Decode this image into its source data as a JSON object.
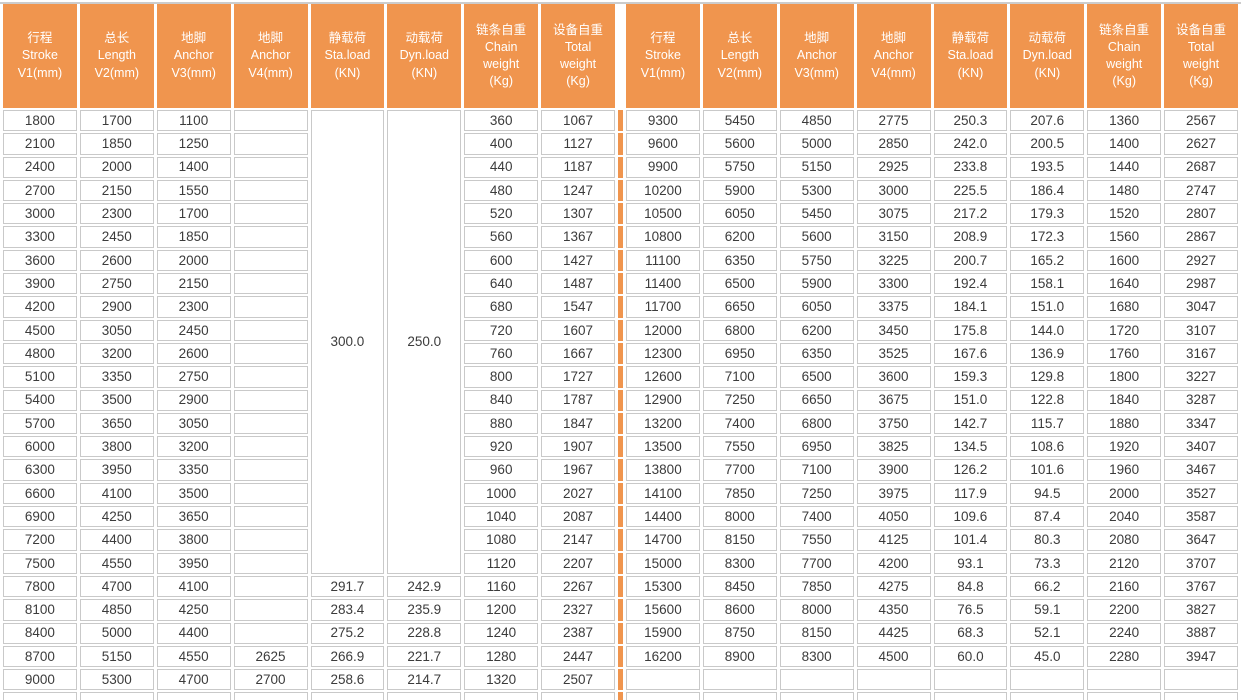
{
  "colors": {
    "header_bg": "#F0954E",
    "divider": "#F0954E",
    "cell_border": "#C9C9C9",
    "cell_text": "#3B3B3B",
    "header_text": "#FFFFFF"
  },
  "table": {
    "columns": [
      {
        "id": "stroke-v1",
        "lines": [
          "行程",
          "Stroke",
          "V1(mm)"
        ]
      },
      {
        "id": "length-v2",
        "lines": [
          "总长",
          "Length",
          "V2(mm)"
        ]
      },
      {
        "id": "anchor-v3",
        "lines": [
          "地脚",
          "Anchor",
          "V3(mm)"
        ]
      },
      {
        "id": "anchor-v4",
        "lines": [
          "地脚",
          "Anchor",
          "V4(mm)"
        ]
      },
      {
        "id": "sta-load",
        "lines": [
          "静载荷",
          "Sta.load",
          "(KN)"
        ]
      },
      {
        "id": "dyn-load",
        "lines": [
          "动载荷",
          "Dyn.load",
          "(KN)"
        ]
      },
      {
        "id": "chain-weight",
        "lines": [
          "链条自重",
          "Chain",
          "weight",
          "(Kg)"
        ]
      },
      {
        "id": "total-weight",
        "lines": [
          "设备自重",
          "Total",
          "weight",
          "(Kg)"
        ]
      }
    ],
    "left": {
      "merged_rows": 20,
      "sta_load": "300.0",
      "dyn_load": "250.0",
      "rows": [
        [
          "1800",
          "1700",
          "1100",
          "",
          "",
          "",
          "360",
          "1067"
        ],
        [
          "2100",
          "1850",
          "1250",
          "",
          "",
          "",
          "400",
          "1127"
        ],
        [
          "2400",
          "2000",
          "1400",
          "",
          "",
          "",
          "440",
          "1187"
        ],
        [
          "2700",
          "2150",
          "1550",
          "",
          "",
          "",
          "480",
          "1247"
        ],
        [
          "3000",
          "2300",
          "1700",
          "",
          "",
          "",
          "520",
          "1307"
        ],
        [
          "3300",
          "2450",
          "1850",
          "",
          "",
          "",
          "560",
          "1367"
        ],
        [
          "3600",
          "2600",
          "2000",
          "",
          "",
          "",
          "600",
          "1427"
        ],
        [
          "3900",
          "2750",
          "2150",
          "",
          "",
          "",
          "640",
          "1487"
        ],
        [
          "4200",
          "2900",
          "2300",
          "",
          "",
          "",
          "680",
          "1547"
        ],
        [
          "4500",
          "3050",
          "2450",
          "",
          "",
          "",
          "720",
          "1607"
        ],
        [
          "4800",
          "3200",
          "2600",
          "",
          "",
          "",
          "760",
          "1667"
        ],
        [
          "5100",
          "3350",
          "2750",
          "",
          "",
          "",
          "800",
          "1727"
        ],
        [
          "5400",
          "3500",
          "2900",
          "",
          "",
          "",
          "840",
          "1787"
        ],
        [
          "5700",
          "3650",
          "3050",
          "",
          "",
          "",
          "880",
          "1847"
        ],
        [
          "6000",
          "3800",
          "3200",
          "",
          "",
          "",
          "920",
          "1907"
        ],
        [
          "6300",
          "3950",
          "3350",
          "",
          "",
          "",
          "960",
          "1967"
        ],
        [
          "6600",
          "4100",
          "3500",
          "",
          "",
          "",
          "1000",
          "2027"
        ],
        [
          "6900",
          "4250",
          "3650",
          "",
          "",
          "",
          "1040",
          "2087"
        ],
        [
          "7200",
          "4400",
          "3800",
          "",
          "",
          "",
          "1080",
          "2147"
        ],
        [
          "7500",
          "4550",
          "3950",
          "",
          "",
          "",
          "1120",
          "2207"
        ],
        [
          "7800",
          "4700",
          "4100",
          "",
          "291.7",
          "242.9",
          "1160",
          "2267"
        ],
        [
          "8100",
          "4850",
          "4250",
          "",
          "283.4",
          "235.9",
          "1200",
          "2327"
        ],
        [
          "8400",
          "5000",
          "4400",
          "",
          "275.2",
          "228.8",
          "1240",
          "2387"
        ],
        [
          "8700",
          "5150",
          "4550",
          "2625",
          "266.9",
          "221.7",
          "1280",
          "2447"
        ],
        [
          "9000",
          "5300",
          "4700",
          "2700",
          "258.6",
          "214.7",
          "1320",
          "2507"
        ]
      ]
    },
    "right": {
      "rows": [
        [
          "9300",
          "5450",
          "4850",
          "2775",
          "250.3",
          "207.6",
          "1360",
          "2567"
        ],
        [
          "9600",
          "5600",
          "5000",
          "2850",
          "242.0",
          "200.5",
          "1400",
          "2627"
        ],
        [
          "9900",
          "5750",
          "5150",
          "2925",
          "233.8",
          "193.5",
          "1440",
          "2687"
        ],
        [
          "10200",
          "5900",
          "5300",
          "3000",
          "225.5",
          "186.4",
          "1480",
          "2747"
        ],
        [
          "10500",
          "6050",
          "5450",
          "3075",
          "217.2",
          "179.3",
          "1520",
          "2807"
        ],
        [
          "10800",
          "6200",
          "5600",
          "3150",
          "208.9",
          "172.3",
          "1560",
          "2867"
        ],
        [
          "11100",
          "6350",
          "5750",
          "3225",
          "200.7",
          "165.2",
          "1600",
          "2927"
        ],
        [
          "11400",
          "6500",
          "5900",
          "3300",
          "192.4",
          "158.1",
          "1640",
          "2987"
        ],
        [
          "11700",
          "6650",
          "6050",
          "3375",
          "184.1",
          "151.0",
          "1680",
          "3047"
        ],
        [
          "12000",
          "6800",
          "6200",
          "3450",
          "175.8",
          "144.0",
          "1720",
          "3107"
        ],
        [
          "12300",
          "6950",
          "6350",
          "3525",
          "167.6",
          "136.9",
          "1760",
          "3167"
        ],
        [
          "12600",
          "7100",
          "6500",
          "3600",
          "159.3",
          "129.8",
          "1800",
          "3227"
        ],
        [
          "12900",
          "7250",
          "6650",
          "3675",
          "151.0",
          "122.8",
          "1840",
          "3287"
        ],
        [
          "13200",
          "7400",
          "6800",
          "3750",
          "142.7",
          "115.7",
          "1880",
          "3347"
        ],
        [
          "13500",
          "7550",
          "6950",
          "3825",
          "134.5",
          "108.6",
          "1920",
          "3407"
        ],
        [
          "13800",
          "7700",
          "7100",
          "3900",
          "126.2",
          "101.6",
          "1960",
          "3467"
        ],
        [
          "14100",
          "7850",
          "7250",
          "3975",
          "117.9",
          "94.5",
          "2000",
          "3527"
        ],
        [
          "14400",
          "8000",
          "7400",
          "4050",
          "109.6",
          "87.4",
          "2040",
          "3587"
        ],
        [
          "14700",
          "8150",
          "7550",
          "4125",
          "101.4",
          "80.3",
          "2080",
          "3647"
        ],
        [
          "15000",
          "8300",
          "7700",
          "4200",
          "93.1",
          "73.3",
          "2120",
          "3707"
        ],
        [
          "15300",
          "8450",
          "7850",
          "4275",
          "84.8",
          "66.2",
          "2160",
          "3767"
        ],
        [
          "15600",
          "8600",
          "8000",
          "4350",
          "76.5",
          "59.1",
          "2200",
          "3827"
        ],
        [
          "15900",
          "8750",
          "8150",
          "4425",
          "68.3",
          "52.1",
          "2240",
          "3887"
        ],
        [
          "16200",
          "8900",
          "8300",
          "4500",
          "60.0",
          "45.0",
          "2280",
          "3947"
        ],
        [
          "",
          "",
          "",
          "",
          "",
          "",
          "",
          ""
        ]
      ]
    },
    "trailing_partial_row": true
  }
}
